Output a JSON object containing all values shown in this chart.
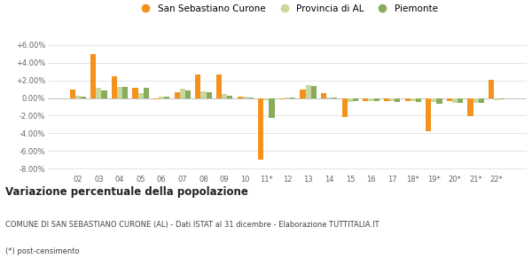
{
  "years": [
    "02",
    "03",
    "04",
    "05",
    "06",
    "07",
    "08",
    "09",
    "10",
    "11*",
    "12",
    "13",
    "14",
    "15",
    "16",
    "17",
    "18*",
    "19*",
    "20*",
    "21*",
    "22*"
  ],
  "san_sebastiano": [
    1.0,
    5.0,
    2.5,
    1.2,
    -0.1,
    0.7,
    2.7,
    2.7,
    0.2,
    -7.0,
    -0.1,
    1.0,
    0.6,
    -2.2,
    -0.3,
    -0.3,
    -0.3,
    -3.8,
    -0.3,
    -2.1,
    2.1
  ],
  "provincia_al": [
    0.3,
    1.2,
    1.3,
    0.6,
    0.2,
    1.1,
    0.8,
    0.5,
    0.2,
    -0.2,
    0.1,
    1.5,
    0.1,
    -0.4,
    -0.3,
    -0.3,
    -0.3,
    -0.4,
    -0.5,
    -0.5,
    -0.2
  ],
  "piemonte": [
    0.2,
    0.9,
    1.3,
    1.2,
    0.2,
    0.9,
    0.7,
    0.3,
    0.1,
    -2.3,
    0.1,
    1.4,
    0.1,
    -0.3,
    -0.3,
    -0.4,
    -0.4,
    -0.6,
    -0.5,
    -0.5,
    -0.1
  ],
  "color_san": "#f5921e",
  "color_prov": "#c8d9a0",
  "color_piem": "#8aab5a",
  "title_bold": "Variazione percentuale della popolazione",
  "subtitle": "COMUNE DI SAN SEBASTIANO CURONE (AL) - Dati ISTAT al 31 dicembre - Elaborazione TUTTITALIA.IT",
  "footnote": "(*) post-censimento",
  "ylim_min": -8.5,
  "ylim_max": 7.2,
  "yticks": [
    -8.0,
    -6.0,
    -4.0,
    -2.0,
    0.0,
    2.0,
    4.0,
    6.0
  ],
  "bg_color": "#ffffff",
  "grid_color": "#e0e0e0"
}
